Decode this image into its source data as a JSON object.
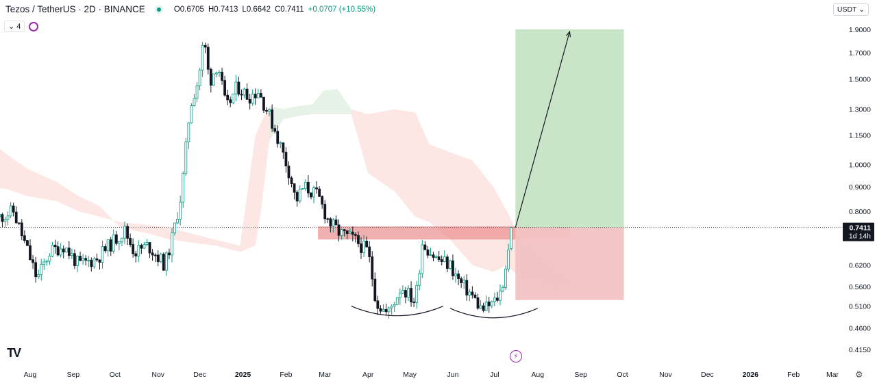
{
  "header": {
    "symbol": "Tezos / TetherUS · 2D · BINANCE",
    "open": "O0.6705",
    "high": "H0.7413",
    "low": "L0.6642",
    "close": "C0.7411",
    "change": "+0.0707 (+10.55%)",
    "indicator_count": "4",
    "currency_button": "USDT"
  },
  "icons": {
    "status": "market-open-dot-icon",
    "collapse": "chevron-down-icon",
    "refresh": "refresh-icon",
    "logo": "tradingview-logo-icon",
    "alert": "lightning-bolt-icon",
    "settings": "gear-icon"
  },
  "colors": {
    "up": "#089981",
    "down": "#131722",
    "cloud_bear": "#fde3e1",
    "cloud_bull": "#e4f3e6",
    "target_zone": "#c6e4c4",
    "stop_zone": "#f1c2c3",
    "resistance_zone": "#eb8f8f",
    "last_price_bg": "#131722"
  },
  "chart_data": {
    "type": "candlestick",
    "scale": "log",
    "ylim": [
      0.4,
      2.0
    ],
    "y_ticks": [
      "1.9000",
      "1.7000",
      "1.5000",
      "1.3000",
      "1.1500",
      "1.0000",
      "0.9000",
      "0.8000",
      "0.6200",
      "0.5600",
      "0.5100",
      "0.4600",
      "0.4150"
    ],
    "x_ticks": [
      "Aug",
      "Sep",
      "Oct",
      "Nov",
      "Dec",
      "2025",
      "Feb",
      "Mar",
      "Apr",
      "May",
      "Jun",
      "Jul",
      "Aug",
      "Sep",
      "Oct",
      "Nov",
      "Dec",
      "2026",
      "Feb",
      "Mar"
    ],
    "last_price": "0.7411",
    "countdown": "1d 14h",
    "anchors": [
      [
        "2024-07-10",
        0.78
      ],
      [
        "2024-07-20",
        0.8
      ],
      [
        "2024-08-01",
        0.64
      ],
      [
        "2024-08-06",
        0.58
      ],
      [
        "2024-08-15",
        0.66
      ],
      [
        "2024-08-25",
        0.68
      ],
      [
        "2024-09-05",
        0.62
      ],
      [
        "2024-09-18",
        0.64
      ],
      [
        "2024-10-01",
        0.7
      ],
      [
        "2024-10-08",
        0.73
      ],
      [
        "2024-10-15",
        0.66
      ],
      [
        "2024-10-25",
        0.68
      ],
      [
        "2024-11-06",
        0.62
      ],
      [
        "2024-11-12",
        0.72
      ],
      [
        "2024-11-18",
        0.88
      ],
      [
        "2024-11-24",
        1.32
      ],
      [
        "2024-11-30",
        1.5
      ],
      [
        "2024-12-04",
        1.82
      ],
      [
        "2024-12-08",
        1.48
      ],
      [
        "2024-12-14",
        1.62
      ],
      [
        "2024-12-20",
        1.3
      ],
      [
        "2024-12-28",
        1.45
      ],
      [
        "2025-01-05",
        1.38
      ],
      [
        "2025-01-12",
        1.42
      ],
      [
        "2025-01-18",
        1.3
      ],
      [
        "2025-01-24",
        1.18
      ],
      [
        "2025-01-30",
        1.05
      ],
      [
        "2025-02-04",
        0.95
      ],
      [
        "2025-02-08",
        0.84
      ],
      [
        "2025-02-14",
        0.9
      ],
      [
        "2025-02-24",
        0.86
      ],
      [
        "2025-03-04",
        0.76
      ],
      [
        "2025-03-12",
        0.72
      ],
      [
        "2025-03-22",
        0.7
      ],
      [
        "2025-04-01",
        0.66
      ],
      [
        "2025-04-07",
        0.52
      ],
      [
        "2025-04-15",
        0.49
      ],
      [
        "2025-04-25",
        0.56
      ],
      [
        "2025-05-05",
        0.52
      ],
      [
        "2025-05-10",
        0.69
      ],
      [
        "2025-05-20",
        0.64
      ],
      [
        "2025-05-30",
        0.62
      ],
      [
        "2025-06-06",
        0.57
      ],
      [
        "2025-06-14",
        0.54
      ],
      [
        "2025-06-22",
        0.5
      ],
      [
        "2025-07-01",
        0.52
      ],
      [
        "2025-07-06",
        0.55
      ],
      [
        "2025-07-10",
        0.64
      ],
      [
        "2025-07-14",
        0.7411
      ]
    ],
    "cloud_top": [
      [
        "2024-06-28",
        0.9
      ],
      [
        "2024-07-15",
        0.89
      ],
      [
        "2024-07-30",
        0.86
      ],
      [
        "2024-08-20",
        0.84
      ],
      [
        "2024-09-05",
        0.8
      ],
      [
        "2024-09-20",
        0.78
      ],
      [
        "2024-10-05",
        0.76
      ],
      [
        "2024-10-25",
        0.75
      ],
      [
        "2024-11-10",
        0.74
      ],
      [
        "2024-11-25",
        0.72
      ],
      [
        "2024-12-12",
        0.7
      ],
      [
        "2024-12-30",
        0.68
      ],
      [
        "2025-01-10",
        1.15
      ],
      [
        "2025-01-14",
        1.22
      ],
      [
        "2025-01-20",
        1.32
      ],
      [
        "2025-01-30",
        1.3
      ],
      [
        "2025-02-10",
        1.32
      ],
      [
        "2025-02-20",
        1.33
      ],
      [
        "2025-02-28",
        1.42
      ],
      [
        "2025-03-10",
        1.43
      ],
      [
        "2025-03-20",
        1.3
      ],
      [
        "2025-04-01",
        1.27
      ],
      [
        "2025-04-20",
        1.3
      ],
      [
        "2025-05-05",
        1.28
      ],
      [
        "2025-05-15",
        1.1
      ],
      [
        "2025-05-30",
        1.06
      ],
      [
        "2025-06-15",
        1.02
      ],
      [
        "2025-06-30",
        0.9
      ],
      [
        "2025-07-10",
        0.8
      ],
      [
        "2025-07-20",
        0.7
      ],
      [
        "2025-08-01",
        0.66
      ],
      [
        "2025-08-15",
        0.6
      ],
      [
        "2025-08-24",
        0.59
      ]
    ],
    "cloud_bottom": [
      [
        "2024-06-28",
        1.15
      ],
      [
        "2024-07-15",
        1.05
      ],
      [
        "2024-07-30",
        0.98
      ],
      [
        "2024-08-20",
        0.92
      ],
      [
        "2024-09-05",
        0.86
      ],
      [
        "2024-09-20",
        0.82
      ],
      [
        "2024-10-05",
        0.74
      ],
      [
        "2024-10-25",
        0.72
      ],
      [
        "2024-11-10",
        0.7
      ],
      [
        "2024-11-25",
        0.69
      ],
      [
        "2024-12-12",
        0.68
      ],
      [
        "2024-12-30",
        0.66
      ],
      [
        "2025-01-10",
        0.68
      ],
      [
        "2025-01-14",
        0.8
      ],
      [
        "2025-01-20",
        1.12
      ],
      [
        "2025-01-30",
        1.24
      ],
      [
        "2025-02-10",
        1.26
      ],
      [
        "2025-02-20",
        1.27
      ],
      [
        "2025-02-28",
        1.27
      ],
      [
        "2025-03-10",
        1.27
      ],
      [
        "2025-03-20",
        1.27
      ],
      [
        "2025-04-01",
        0.96
      ],
      [
        "2025-04-20",
        0.88
      ],
      [
        "2025-05-05",
        0.78
      ],
      [
        "2025-05-15",
        0.76
      ],
      [
        "2025-05-30",
        0.7
      ],
      [
        "2025-06-15",
        0.62
      ],
      [
        "2025-06-30",
        0.6
      ],
      [
        "2025-07-10",
        0.62
      ],
      [
        "2025-07-20",
        0.58
      ],
      [
        "2025-08-01",
        0.57
      ],
      [
        "2025-08-15",
        0.55
      ],
      [
        "2025-08-24",
        0.56
      ]
    ],
    "resistance_zone": {
      "start": "2025-02-24",
      "end": "2025-08-24",
      "low": 0.7,
      "high": 0.745
    },
    "position": {
      "start": "2025-07-16",
      "end": "2025-10-02",
      "entry": 0.7411,
      "target": 1.9,
      "stop": 0.525
    },
    "arrow": {
      "from": [
        "2025-07-16",
        0.7411
      ],
      "to": [
        "2025-08-24",
        1.88
      ]
    },
    "arcs": [
      {
        "start": "2025-03-20",
        "end": "2025-05-25",
        "level": 0.5
      },
      {
        "start": "2025-05-30",
        "end": "2025-08-01",
        "level": 0.495
      }
    ]
  }
}
